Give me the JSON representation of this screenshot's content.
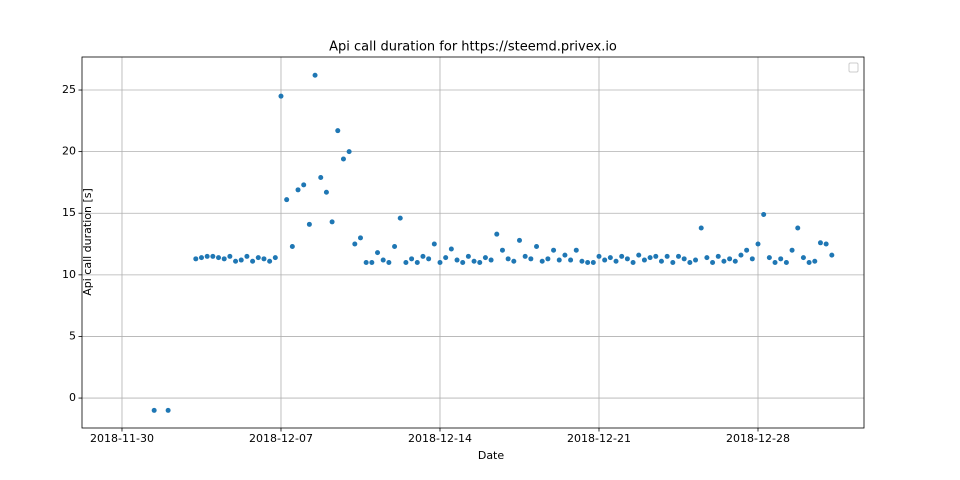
{
  "chart_data": {
    "type": "scatter",
    "title": "Api call duration for https://steemd.privex.io",
    "x_label": "Date",
    "y_label": "Api call duration [s]",
    "color": "#1f77b4",
    "grid": true,
    "xlim": [
      "2018-11-28 05:45",
      "2019-01-01 16:00"
    ],
    "xticks": [
      "2018-11-30",
      "2018-12-07",
      "2018-12-14",
      "2018-12-21",
      "2018-12-28"
    ],
    "ylim": [
      -2.43,
      27.68
    ],
    "yticks": [
      0,
      5,
      10,
      15,
      20,
      25
    ],
    "x": [
      "2018-12-01 10:00",
      "2018-12-02 00:45",
      "2018-12-03 06:00",
      "2018-12-03 12:00",
      "2018-12-03 18:00",
      "2018-12-04 00:00",
      "2018-12-04 06:00",
      "2018-12-04 12:00",
      "2018-12-04 18:00",
      "2018-12-05 00:00",
      "2018-12-05 06:00",
      "2018-12-05 12:00",
      "2018-12-05 18:00",
      "2018-12-06 00:00",
      "2018-12-06 06:00",
      "2018-12-06 12:00",
      "2018-12-06 18:00",
      "2018-12-07 00:00",
      "2018-12-07 06:00",
      "2018-12-07 12:00",
      "2018-12-07 18:00",
      "2018-12-08 00:00",
      "2018-12-08 06:00",
      "2018-12-08 12:00",
      "2018-12-08 18:00",
      "2018-12-09 00:00",
      "2018-12-09 06:00",
      "2018-12-09 12:00",
      "2018-12-09 18:00",
      "2018-12-10 00:00",
      "2018-12-10 06:00",
      "2018-12-10 12:00",
      "2018-12-10 18:00",
      "2018-12-11 00:00",
      "2018-12-11 06:00",
      "2018-12-11 12:00",
      "2018-12-11 18:00",
      "2018-12-12 00:00",
      "2018-12-12 06:00",
      "2018-12-12 12:00",
      "2018-12-12 18:00",
      "2018-12-13 00:00",
      "2018-12-13 06:00",
      "2018-12-13 12:00",
      "2018-12-13 18:00",
      "2018-12-14 00:00",
      "2018-12-14 06:00",
      "2018-12-14 12:00",
      "2018-12-14 18:00",
      "2018-12-15 00:00",
      "2018-12-15 06:00",
      "2018-12-15 12:00",
      "2018-12-15 18:00",
      "2018-12-16 00:00",
      "2018-12-16 06:00",
      "2018-12-16 12:00",
      "2018-12-16 18:00",
      "2018-12-17 00:00",
      "2018-12-17 06:00",
      "2018-12-17 12:00",
      "2018-12-17 18:00",
      "2018-12-18 00:00",
      "2018-12-18 06:00",
      "2018-12-18 12:00",
      "2018-12-18 18:00",
      "2018-12-19 00:00",
      "2018-12-19 06:00",
      "2018-12-19 12:00",
      "2018-12-19 18:00",
      "2018-12-20 00:00",
      "2018-12-20 06:00",
      "2018-12-20 12:00",
      "2018-12-20 18:00",
      "2018-12-21 00:00",
      "2018-12-21 06:00",
      "2018-12-21 12:00",
      "2018-12-21 18:00",
      "2018-12-22 00:00",
      "2018-12-22 06:00",
      "2018-12-22 12:00",
      "2018-12-22 18:00",
      "2018-12-23 00:00",
      "2018-12-23 06:00",
      "2018-12-23 12:00",
      "2018-12-23 18:00",
      "2018-12-24 00:00",
      "2018-12-24 06:00",
      "2018-12-24 12:00",
      "2018-12-24 18:00",
      "2018-12-25 00:00",
      "2018-12-25 06:00",
      "2018-12-25 12:00",
      "2018-12-25 18:00",
      "2018-12-26 00:00",
      "2018-12-26 06:00",
      "2018-12-26 12:00",
      "2018-12-26 18:00",
      "2018-12-27 00:00",
      "2018-12-27 06:00",
      "2018-12-27 12:00",
      "2018-12-27 18:00",
      "2018-12-28 00:00",
      "2018-12-28 06:00",
      "2018-12-28 12:00",
      "2018-12-28 18:00",
      "2018-12-29 00:00",
      "2018-12-29 06:00",
      "2018-12-29 12:00",
      "2018-12-29 18:00",
      "2018-12-30 00:00",
      "2018-12-30 06:00",
      "2018-12-30 12:00",
      "2018-12-30 18:00",
      "2018-12-31 00:00",
      "2018-12-31 06:00"
    ],
    "values": [
      -1,
      -1,
      11.3,
      11.4,
      11.5,
      11.5,
      11.4,
      11.3,
      11.5,
      11.1,
      11.2,
      11.5,
      11.1,
      11.4,
      11.3,
      11.1,
      11.4,
      24.5,
      16.1,
      12.3,
      16.9,
      17.3,
      14.1,
      26.2,
      17.9,
      16.7,
      14.3,
      21.7,
      19.4,
      20.0,
      12.5,
      13.0,
      11.0,
      11.0,
      11.8,
      11.2,
      11.0,
      12.3,
      14.6,
      11.0,
      11.3,
      11.0,
      11.5,
      11.3,
      12.5,
      11.0,
      11.4,
      12.1,
      11.2,
      11.0,
      11.5,
      11.1,
      11.0,
      11.4,
      11.2,
      13.3,
      12.0,
      11.3,
      11.1,
      12.8,
      11.5,
      11.3,
      12.3,
      11.1,
      11.3,
      12.0,
      11.2,
      11.6,
      11.2,
      12.0,
      11.1,
      11.0,
      11.0,
      11.5,
      11.2,
      11.4,
      11.1,
      11.5,
      11.3,
      11.0,
      11.6,
      11.2,
      11.4,
      11.5,
      11.1,
      11.5,
      11.0,
      11.5,
      11.3,
      11.0,
      11.2,
      13.8,
      11.4,
      11.0,
      11.5,
      11.1,
      11.3,
      11.1,
      11.6,
      12.0,
      11.3,
      12.5,
      14.9,
      11.4,
      11.0,
      11.3,
      11.0,
      12.0,
      13.8,
      11.4,
      11.0,
      11.1,
      12.6,
      12.5,
      11.6
    ]
  }
}
